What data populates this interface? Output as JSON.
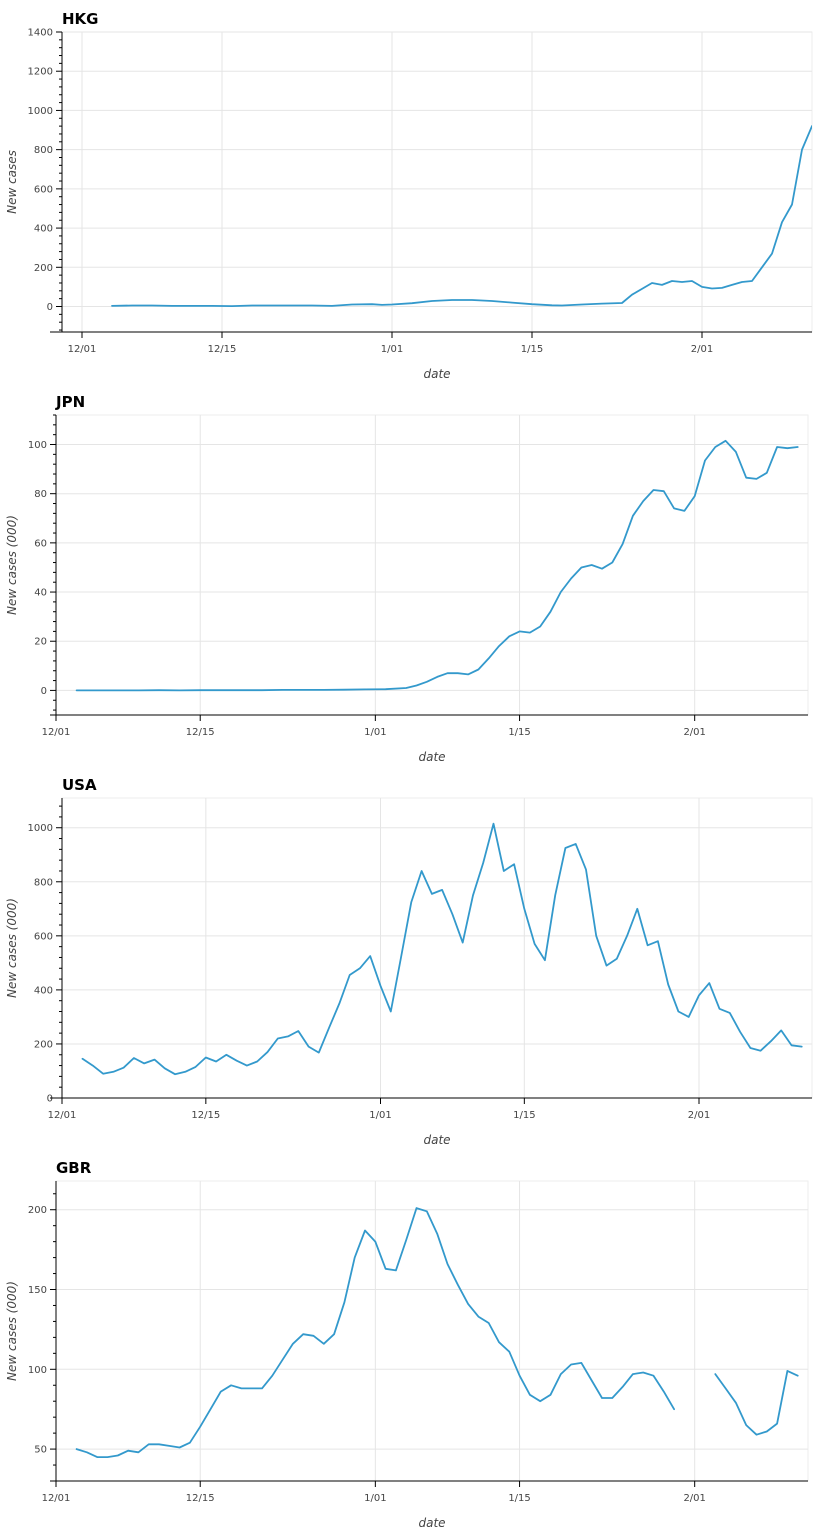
{
  "chart_data": [
    {
      "type": "line",
      "title": "HKG",
      "xlabel": "date",
      "ylabel": "New cases",
      "xlim": [
        -2,
        73
      ],
      "ylim": [
        -130,
        1400
      ],
      "grid": true,
      "x_ticks": [
        {
          "value": 0,
          "label": "12/01"
        },
        {
          "value": 14,
          "label": "12/15"
        },
        {
          "value": 31,
          "label": "1/01"
        },
        {
          "value": 45,
          "label": "1/15"
        },
        {
          "value": 62,
          "label": "2/01"
        }
      ],
      "y_ticks": [
        0,
        200,
        400,
        600,
        800,
        1000,
        1200,
        1400
      ],
      "color": "#3399cc",
      "series": [
        {
          "x": [
            3,
            5,
            7,
            9,
            11,
            13,
            15,
            17,
            19,
            21,
            23,
            25,
            27,
            29,
            30,
            31,
            33,
            35,
            37,
            39,
            41,
            43,
            45,
            47,
            48,
            50,
            52,
            54,
            55,
            56,
            57,
            58,
            59,
            60,
            61,
            62,
            63,
            64,
            65,
            66,
            67,
            68,
            69,
            70,
            71,
            72,
            73
          ],
          "values": [
            3,
            5,
            5,
            3,
            3,
            3,
            2,
            5,
            5,
            5,
            5,
            3,
            10,
            12,
            8,
            10,
            17,
            28,
            33,
            33,
            28,
            20,
            12,
            6,
            5,
            10,
            15,
            18,
            60,
            90,
            120,
            110,
            130,
            125,
            130,
            100,
            92,
            95,
            110,
            125,
            130,
            200,
            270,
            430,
            520,
            800,
            920
          ]
        }
      ]
    },
    {
      "type": "line",
      "title": "JPN",
      "xlabel": "date",
      "ylabel": "New cases (000)",
      "xlim": [
        0,
        73
      ],
      "ylim": [
        -10,
        112
      ],
      "grid": true,
      "x_ticks": [
        {
          "value": 0,
          "label": "12/01"
        },
        {
          "value": 14,
          "label": "12/15"
        },
        {
          "value": 31,
          "label": "1/01"
        },
        {
          "value": 45,
          "label": "1/15"
        },
        {
          "value": 62,
          "label": "2/01"
        }
      ],
      "y_ticks": [
        0,
        20,
        40,
        60,
        80,
        100
      ],
      "color": "#3399cc",
      "series": [
        {
          "x": [
            2,
            4,
            6,
            8,
            10,
            12,
            14,
            16,
            18,
            20,
            22,
            24,
            26,
            28,
            30,
            32,
            34,
            35,
            36,
            37,
            38,
            39,
            40,
            41,
            42,
            43,
            44,
            45,
            46,
            47,
            48,
            49,
            50,
            51,
            52,
            53,
            54,
            55,
            56,
            57,
            58,
            59,
            60,
            61,
            62,
            63,
            64,
            65,
            66,
            67,
            68,
            69,
            70,
            71,
            72
          ],
          "values": [
            0,
            0,
            0,
            0,
            0.1,
            0,
            0.1,
            0.1,
            0.1,
            0.1,
            0.2,
            0.2,
            0.2,
            0.3,
            0.4,
            0.5,
            1,
            2,
            3.5,
            5.5,
            7,
            7,
            6.5,
            8.5,
            13,
            18,
            22,
            24,
            23.5,
            26,
            32,
            40,
            45.5,
            50,
            51,
            49.5,
            52,
            59.5,
            71,
            77,
            81.5,
            81,
            74,
            73,
            79,
            93.5,
            99,
            101.5,
            97,
            86.5,
            86,
            88.5,
            99,
            98.5,
            99
          ]
        }
      ]
    },
    {
      "type": "line",
      "title": "USA",
      "xlabel": "date",
      "ylabel": "New cases (000)",
      "xlim": [
        0,
        73
      ],
      "ylim": [
        0,
        1110
      ],
      "grid": true,
      "x_ticks": [
        {
          "value": 0,
          "label": "12/01"
        },
        {
          "value": 14,
          "label": "12/15"
        },
        {
          "value": 31,
          "label": "1/01"
        },
        {
          "value": 45,
          "label": "1/15"
        },
        {
          "value": 62,
          "label": "2/01"
        }
      ],
      "y_ticks": [
        0,
        200,
        400,
        600,
        800,
        1000
      ],
      "color": "#3399cc",
      "series": [
        {
          "x": [
            2,
            3,
            4,
            5,
            6,
            7,
            8,
            9,
            10,
            11,
            12,
            13,
            14,
            15,
            16,
            17,
            18,
            19,
            20,
            21,
            22,
            23,
            24,
            25,
            26,
            27,
            28,
            29,
            30,
            31,
            32,
            33,
            34,
            35,
            36,
            37,
            38,
            39,
            40,
            41,
            42,
            43,
            44,
            45,
            46,
            47,
            48,
            49,
            50,
            51,
            52,
            53,
            54,
            55,
            56,
            57,
            58,
            59,
            60,
            61,
            62,
            63,
            64,
            65,
            66,
            67,
            68,
            69,
            70,
            71,
            72
          ],
          "values": [
            145,
            120,
            90,
            97,
            112,
            148,
            128,
            142,
            110,
            88,
            97,
            115,
            150,
            135,
            160,
            138,
            120,
            135,
            170,
            220,
            228,
            248,
            190,
            168,
            260,
            350,
            455,
            480,
            525,
            415,
            320,
            520,
            725,
            840,
            755,
            770,
            680,
            575,
            750,
            870,
            1015,
            840,
            865,
            700,
            570,
            510,
            750,
            925,
            940,
            845,
            600,
            490,
            515,
            600,
            700,
            565,
            580,
            420,
            320,
            300,
            380,
            425,
            330,
            315,
            245,
            185,
            175,
            210,
            250,
            195,
            190
          ]
        }
      ]
    },
    {
      "type": "line",
      "title": "GBR",
      "xlabel": "date",
      "ylabel": "New cases (000)",
      "xlim": [
        0,
        73
      ],
      "ylim": [
        30,
        218
      ],
      "grid": true,
      "x_ticks": [
        {
          "value": 0,
          "label": "12/01"
        },
        {
          "value": 14,
          "label": "12/15"
        },
        {
          "value": 31,
          "label": "1/01"
        },
        {
          "value": 45,
          "label": "1/15"
        },
        {
          "value": 62,
          "label": "2/01"
        }
      ],
      "y_ticks": [
        50,
        100,
        150,
        200
      ],
      "color": "#3399cc",
      "series": [
        {
          "x": [
            2,
            3,
            4,
            5,
            6,
            7,
            8,
            9,
            10,
            11,
            12,
            13,
            14,
            15,
            16,
            17,
            18,
            19,
            20,
            21,
            22,
            23,
            24,
            25,
            26,
            27,
            28,
            29,
            30,
            31,
            32,
            33,
            34,
            35,
            36,
            37,
            38,
            39,
            40,
            41,
            42,
            43,
            44,
            45,
            46,
            47,
            48,
            49,
            50,
            51,
            52,
            53,
            54,
            55,
            56,
            57,
            58,
            59,
            60,
            61,
            62,
            63,
            64,
            65,
            66,
            67,
            68,
            69,
            70,
            71,
            72
          ],
          "values": [
            50,
            48,
            45,
            45,
            46,
            49,
            48,
            53,
            53,
            52,
            51,
            54,
            64,
            75,
            86,
            90,
            88,
            88,
            88,
            96,
            106,
            116,
            122,
            121,
            116,
            122,
            142,
            170,
            187,
            180,
            163,
            162,
            181,
            201,
            199,
            185,
            166,
            153,
            141,
            133,
            129,
            117,
            111,
            96,
            84,
            80,
            84,
            97,
            103,
            104,
            93,
            82,
            82,
            89,
            97,
            98,
            96,
            86,
            75,
            null,
            null,
            null,
            97,
            88,
            79,
            65,
            59,
            61,
            66,
            99,
            96
          ]
        }
      ]
    }
  ]
}
